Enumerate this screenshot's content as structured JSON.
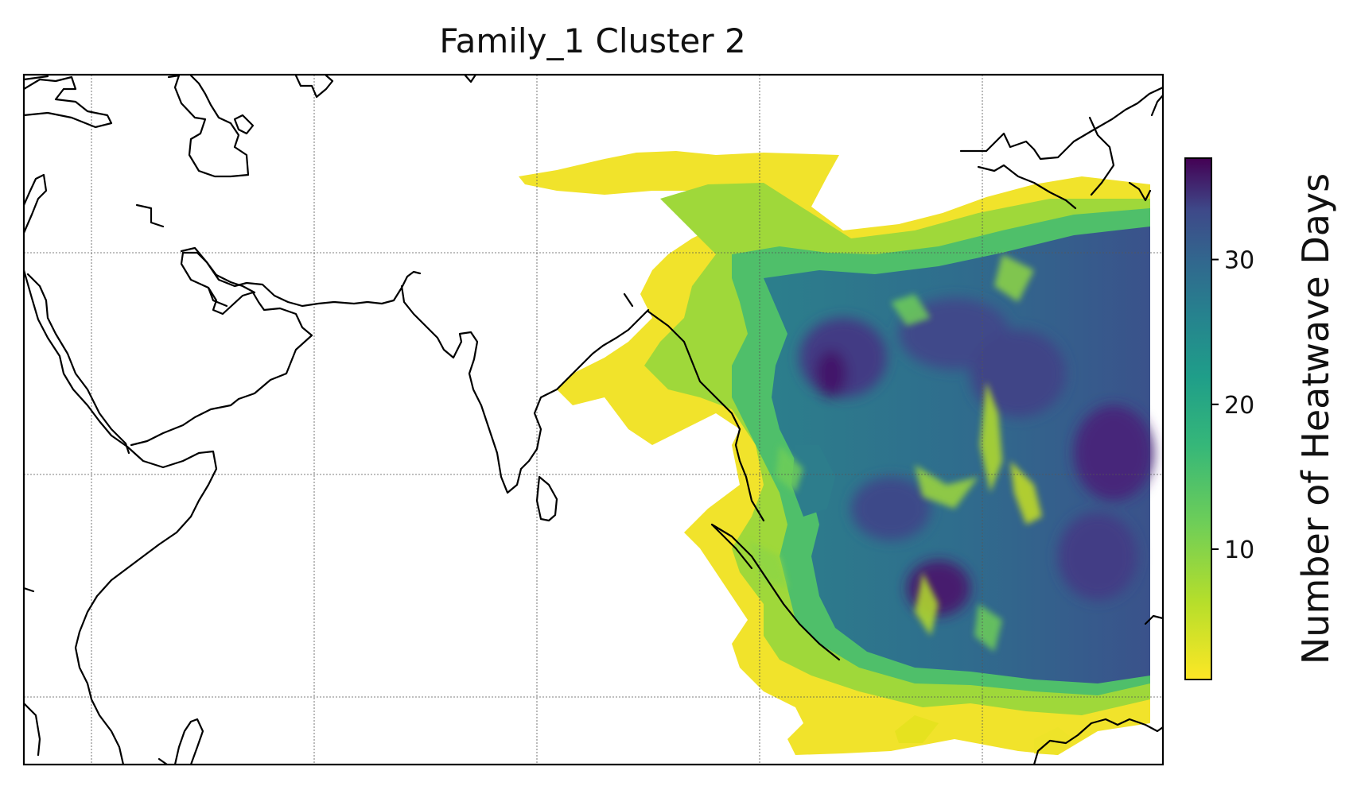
{
  "figure": {
    "title": "Family_1 Cluster 2"
  },
  "map": {
    "region": "Indian Ocean / Southeast Asia",
    "projection": "PlateCarree",
    "gridlines": true,
    "coastlines": true
  },
  "colorbar": {
    "label": "Number of Heatwave Days",
    "colormap": "viridis_r",
    "range": [
      1,
      37
    ],
    "ticks": [
      10,
      20,
      30
    ],
    "tick_labels": [
      "10",
      "20",
      "30"
    ]
  },
  "colors": {
    "low": "#fde725",
    "mid": "#21918c",
    "high": "#440154",
    "coastline": "#000000"
  }
}
